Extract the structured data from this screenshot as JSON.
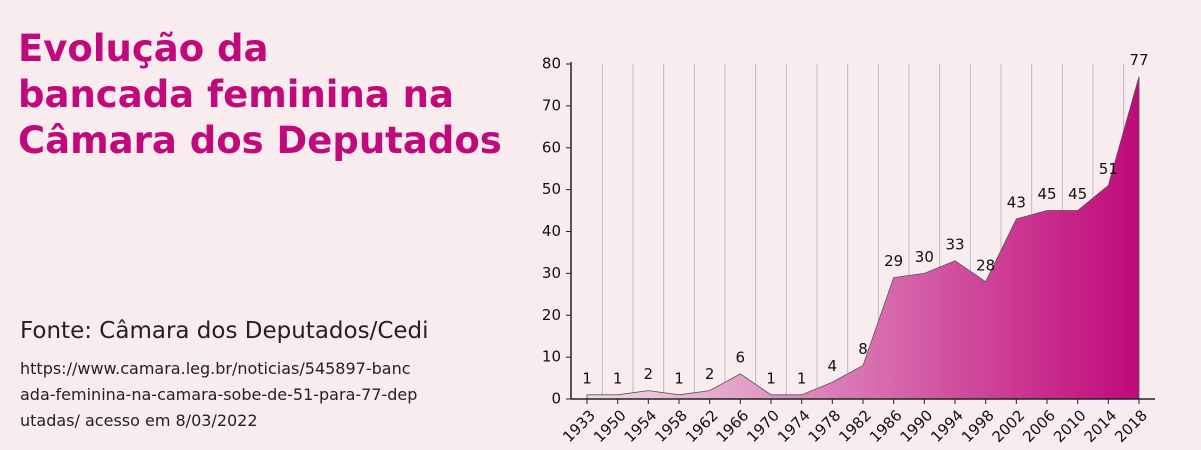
{
  "chart_data": {
    "type": "area",
    "title": [
      "Evolução da",
      "bancada feminina na",
      "Câmara dos Deputados"
    ],
    "source": "Fonte: Câmara dos Deputados/Cedi",
    "source_url": [
      "https://www.camara.leg.br/noticias/545897-banc",
      "ada-feminina-na-camara-sobe-de-51-para-77-dep",
      "utadas/ acesso em 8/03/2022"
    ],
    "categories": [
      "1933",
      "1950",
      "1954",
      "1958",
      "1962",
      "1966",
      "1970",
      "1974",
      "1978",
      "1982",
      "1986",
      "1990",
      "1994",
      "1998",
      "2002",
      "2006",
      "2010",
      "2014",
      "2018"
    ],
    "values": [
      1,
      1,
      2,
      1,
      2,
      6,
      1,
      1,
      4,
      8,
      29,
      30,
      33,
      28,
      43,
      45,
      45,
      51,
      77
    ],
    "color": "#c0097a",
    "ylim": [
      0,
      80
    ],
    "yticks": [
      0,
      10,
      20,
      30,
      40,
      50,
      60,
      70,
      80
    ],
    "grid": true
  }
}
